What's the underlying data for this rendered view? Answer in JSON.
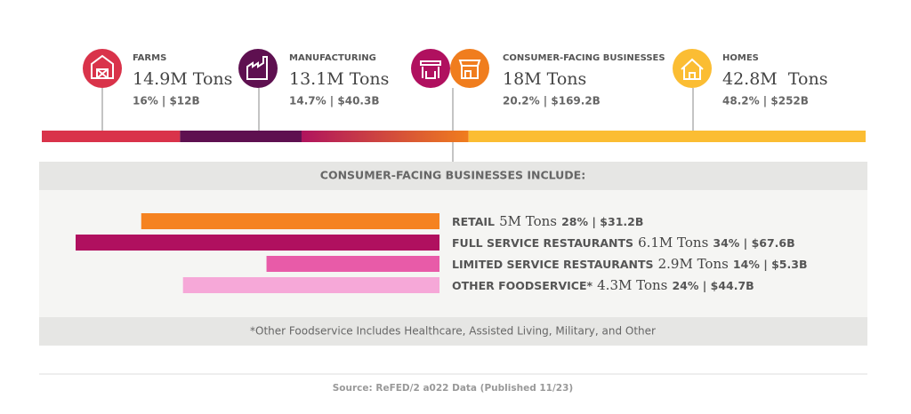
{
  "chart_data": [
    {
      "type": "stacked-bar",
      "categories": [
        "FARMS",
        "MANUFACTURING",
        "CONSUMER-FACING BUSINESSES",
        "HOMES"
      ],
      "values": [
        14.9,
        13.1,
        18,
        42.8
      ],
      "value_labels": [
        "14.9M Tons",
        "13.1M Tons",
        "18M Tons",
        "42.8M  Tons"
      ],
      "details": [
        "16% | $12B",
        "14.7% | $40.3B",
        "20.2% | $169.2B",
        "48.2% | $252B"
      ],
      "colors": [
        "#d9334a",
        "#5e1050",
        [
          "#b0145e",
          "#f07d1e"
        ],
        "#fbbd33"
      ]
    },
    {
      "type": "bar",
      "orientation": "horizontal",
      "title": "CONSUMER-FACING BUSINESSES INCLUDE:",
      "categories": [
        "RETAIL",
        "FULL SERVICE RESTAURANTS",
        "LIMITED SERVICE RESTAURANTS",
        "OTHER FOODSERVICE*"
      ],
      "values": [
        5,
        6.1,
        2.9,
        4.3
      ],
      "value_labels": [
        "5M Tons",
        "6.1M Tons",
        "2.9M Tons",
        "4.3M Tons"
      ],
      "details": [
        "28% | $31.2B",
        "34% | $67.6B",
        "14% | $5.3B",
        "24% | $44.7B"
      ],
      "colors": [
        "#f58220",
        "#b0105f",
        "#e85ba8",
        "#f6a8d8"
      ],
      "note": "*Other Foodservice Includes Healthcare, Assisted Living, Military, and Other"
    }
  ],
  "source": "Source: ReFED/2 a022 Data (Published 11/23)"
}
